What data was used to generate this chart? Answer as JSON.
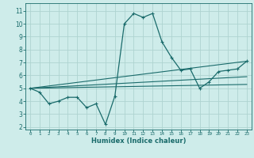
{
  "title": "",
  "xlabel": "Humidex (Indice chaleur)",
  "background_color": "#ceecea",
  "grid_color": "#aed4d0",
  "line_color": "#1a6b6b",
  "xlim": [
    -0.5,
    23.5
  ],
  "ylim": [
    1.8,
    11.6
  ],
  "xticks": [
    0,
    1,
    2,
    3,
    4,
    5,
    6,
    7,
    8,
    9,
    10,
    11,
    12,
    13,
    14,
    15,
    16,
    17,
    18,
    19,
    20,
    21,
    22,
    23
  ],
  "yticks": [
    2,
    3,
    4,
    5,
    6,
    7,
    8,
    9,
    10,
    11
  ],
  "series": [
    [
      0,
      5.0
    ],
    [
      1,
      4.7
    ],
    [
      2,
      3.8
    ],
    [
      3,
      4.0
    ],
    [
      4,
      4.3
    ],
    [
      5,
      4.3
    ],
    [
      6,
      3.5
    ],
    [
      7,
      3.8
    ],
    [
      8,
      2.2
    ],
    [
      9,
      4.4
    ],
    [
      10,
      10.0
    ],
    [
      11,
      10.8
    ],
    [
      12,
      10.5
    ],
    [
      13,
      10.8
    ],
    [
      14,
      8.6
    ],
    [
      15,
      7.4
    ],
    [
      16,
      6.4
    ],
    [
      17,
      6.5
    ],
    [
      18,
      5.0
    ],
    [
      19,
      5.5
    ],
    [
      20,
      6.3
    ],
    [
      21,
      6.4
    ],
    [
      22,
      6.5
    ],
    [
      23,
      7.1
    ]
  ],
  "line1": [
    [
      0,
      5.0
    ],
    [
      23,
      7.1
    ]
  ],
  "line2": [
    [
      0,
      5.0
    ],
    [
      23,
      5.3
    ]
  ],
  "line3": [
    [
      0,
      5.0
    ],
    [
      23,
      5.9
    ]
  ]
}
